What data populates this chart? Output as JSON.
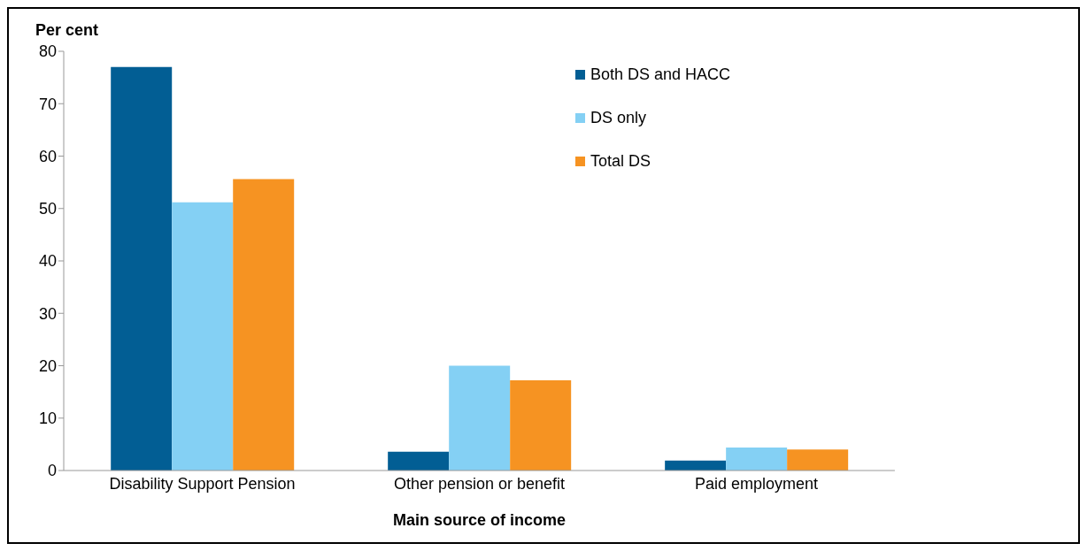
{
  "chart_data": {
    "type": "bar",
    "ylabel": "Per cent",
    "xlabel": "Main source of income",
    "categories": [
      "Disability Support Pension",
      "Other pension or benefit",
      "Paid employment"
    ],
    "series": [
      {
        "name": "Both DS and HACC",
        "color": "#025e94",
        "values": [
          77.0,
          3.6,
          1.9
        ]
      },
      {
        "name": "DS only",
        "color": "#84d0f4",
        "values": [
          51.2,
          20.0,
          4.4
        ]
      },
      {
        "name": "Total DS",
        "color": "#f69322",
        "values": [
          55.6,
          17.2,
          4.0
        ]
      }
    ],
    "ylim": [
      0,
      80
    ],
    "yticks": [
      0,
      10,
      20,
      30,
      40,
      50,
      60,
      70,
      80
    ],
    "grid": false,
    "legend": "top right"
  }
}
